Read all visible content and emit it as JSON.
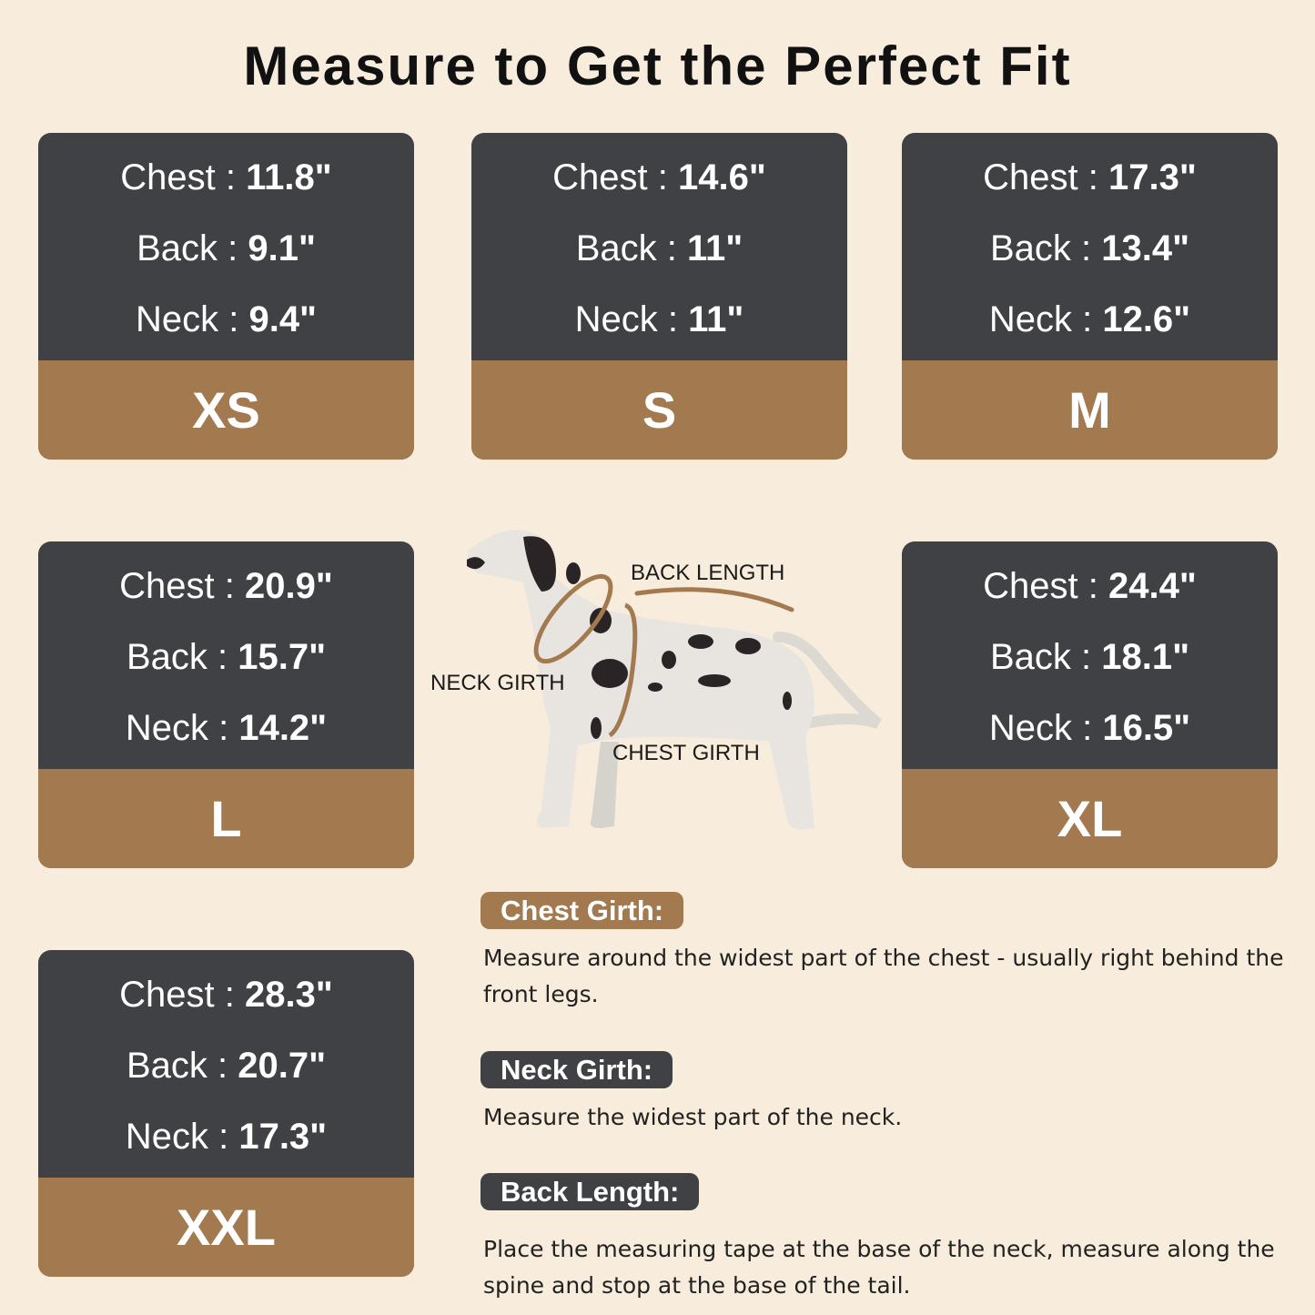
{
  "title": "Measure to Get the Perfect Fit",
  "colors": {
    "background": "#f8eddc",
    "card_dark": "#404145",
    "accent_brown": "#a37a50"
  },
  "sizes": [
    {
      "size": "XS",
      "chest": "11.8\"",
      "back": "9.1\"",
      "neck": "9.4\""
    },
    {
      "size": "S",
      "chest": "14.6\"",
      "back": "11\"",
      "neck": "11\""
    },
    {
      "size": "M",
      "chest": "17.3\"",
      "back": "13.4\"",
      "neck": "12.6\""
    },
    {
      "size": "L",
      "chest": "20.9\"",
      "back": "15.7\"",
      "neck": "14.2\""
    },
    {
      "size": "XL",
      "chest": "24.4\"",
      "back": "18.1\"",
      "neck": "16.5\""
    },
    {
      "size": "XXL",
      "chest": "28.3\"",
      "back": "20.7\"",
      "neck": "17.3\""
    }
  ],
  "labels": {
    "chest": "Chest : ",
    "back": "Back : ",
    "neck": "Neck : "
  },
  "diagram": {
    "back_length": "BACK LENGTH",
    "neck_girth": "NECK GIRTH",
    "chest_girth": "CHEST GIRTH"
  },
  "guide": [
    {
      "heading": "Chest Girth:",
      "text": "Measure around the widest part of the chest - usually right behind the front legs."
    },
    {
      "heading": "Neck Girth:",
      "text": "Measure the widest part of the neck."
    },
    {
      "heading": "Back Length:",
      "text": "Place the measuring tape at the base of the neck, measure along the spine and stop at the base of the tail."
    }
  ]
}
